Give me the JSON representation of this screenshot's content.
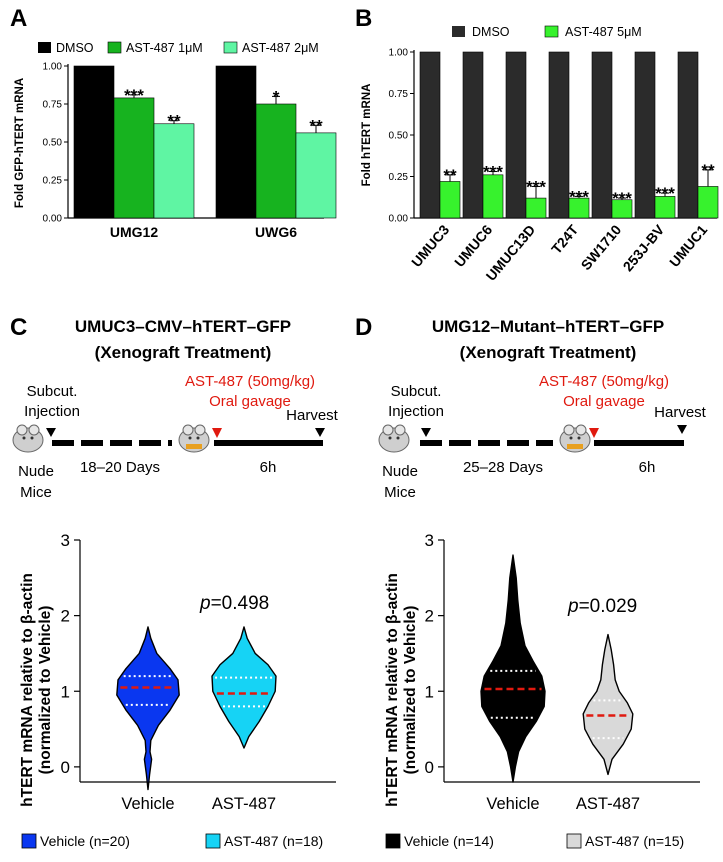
{
  "panels": {
    "A": {
      "letter": "A",
      "legend": [
        "DMSO",
        "AST-487 1μM",
        "AST-487 2μM"
      ],
      "ylabel": "Fold GFP-hTERT mRNA",
      "yticks": [
        "0.00",
        "0.25",
        "0.50",
        "0.75",
        "1.00"
      ],
      "colors": [
        "#000000",
        "#17b31f",
        "#5ff5a3"
      ]
    },
    "B": {
      "letter": "B",
      "legend": [
        "DMSO",
        "AST-487 5μM"
      ],
      "ylabel": "Fold hTERT mRNA",
      "yticks": [
        "0.00",
        "0.25",
        "0.50",
        "0.75",
        "1.00"
      ],
      "colors": [
        "#2b2b2b",
        "#37f22d"
      ]
    },
    "C": {
      "letter": "C",
      "title1": "UMUC3–CMV–hTERT–GFP",
      "title2": "(Xenograft Treatment)",
      "treatment1": "AST-487 (50mg/kg)",
      "treatment2": "Oral gavage",
      "subcut1": "Subcut.",
      "subcut2": "Injection",
      "nude1": "Nude",
      "nude2": "Mice",
      "days": "18–20 Days",
      "hours": "6h",
      "harvest": "Harvest",
      "ylabel1": "hTERT mRNA relative to β-actin",
      "ylabel2": "(normalized to Vehicle)",
      "yticks": [
        "0",
        "1",
        "2",
        "3"
      ],
      "p_label": "p",
      "p_value": "=0.498",
      "categories": [
        "Vehicle",
        "AST-487"
      ],
      "legend": [
        "Vehicle (n=20)",
        "AST-487 (n=18)"
      ],
      "colors": [
        "#0a37f0",
        "#16d3f5"
      ]
    },
    "D": {
      "letter": "D",
      "title1": "UMG12–Mutant–hTERT–GFP",
      "title2": "(Xenograft Treatment)",
      "treatment1": "AST-487 (50mg/kg)",
      "treatment2": "Oral gavage",
      "subcut1": "Subcut.",
      "subcut2": "Injection",
      "nude1": "Nude",
      "nude2": "Mice",
      "days": "25–28 Days",
      "hours": "6h",
      "harvest": "Harvest",
      "ylabel1": "hTERT mRNA relative to β-actin",
      "ylabel2": "(normalized to Vehicle)",
      "yticks": [
        "0",
        "1",
        "2",
        "3"
      ],
      "p_label": "p",
      "p_value": "=0.029",
      "categories": [
        "Vehicle",
        "AST-487"
      ],
      "legend": [
        "Vehicle (n=14)",
        "AST-487 (n=15)"
      ],
      "colors": [
        "#000000",
        "#d9d9d9"
      ]
    }
  },
  "chart_data": [
    {
      "panel": "A",
      "type": "bar",
      "title": "",
      "xlabel": "",
      "ylabel": "Fold GFP-hTERT mRNA",
      "ylim": [
        0,
        1.0
      ],
      "categories": [
        "UMG12",
        "UWG6"
      ],
      "series": [
        {
          "name": "DMSO",
          "values": [
            1.0,
            1.0
          ],
          "errors": [
            0,
            0
          ],
          "sig": [
            "",
            ""
          ]
        },
        {
          "name": "AST-487 1μM",
          "values": [
            0.79,
            0.75
          ],
          "errors": [
            0.02,
            0.05
          ],
          "sig": [
            "***",
            "*"
          ]
        },
        {
          "name": "AST-487 2μM",
          "values": [
            0.62,
            0.56
          ],
          "errors": [
            0.02,
            0.05
          ],
          "sig": [
            "**",
            "**"
          ]
        }
      ]
    },
    {
      "panel": "B",
      "type": "bar",
      "title": "",
      "xlabel": "",
      "ylabel": "Fold hTERT mRNA",
      "ylim": [
        0,
        1.0
      ],
      "categories": [
        "UMUC3",
        "UMUC6",
        "UMUC13D",
        "T24T",
        "SW1710",
        "253J-BV",
        "UMUC1"
      ],
      "series": [
        {
          "name": "DMSO",
          "values": [
            1.0,
            1.0,
            1.0,
            1.0,
            1.0,
            1.0,
            1.0
          ],
          "errors": [
            0,
            0,
            0,
            0,
            0,
            0,
            0
          ],
          "sig": [
            "",
            "",
            "",
            "",
            "",
            "",
            ""
          ]
        },
        {
          "name": "AST-487 5μM",
          "values": [
            0.22,
            0.26,
            0.12,
            0.12,
            0.11,
            0.13,
            0.19
          ],
          "errors": [
            0.04,
            0.02,
            0.07,
            0.01,
            0.01,
            0.02,
            0.1
          ],
          "sig": [
            "**",
            "***",
            "***",
            "***",
            "***",
            "***",
            "**"
          ]
        }
      ]
    },
    {
      "panel": "C",
      "type": "violin",
      "title": "UMUC3–CMV–hTERT–GFP",
      "xlabel": "",
      "ylabel": "hTERT mRNA relative to β-actin (normalized to Vehicle)",
      "ylim": [
        -0.2,
        3.0
      ],
      "categories": [
        "Vehicle",
        "AST-487"
      ],
      "series": [
        {
          "name": "Vehicle (n=20)",
          "min": -0.3,
          "max": 1.85,
          "q1": 0.82,
          "median": 1.05,
          "q3": 1.2,
          "profile": [
            [
              -0.3,
              0
            ],
            [
              -0.1,
              0.04
            ],
            [
              0.1,
              0.09
            ],
            [
              0.2,
              0.05
            ],
            [
              0.35,
              0.07
            ],
            [
              0.55,
              0.26
            ],
            [
              0.75,
              0.55
            ],
            [
              0.95,
              0.78
            ],
            [
              1.15,
              0.75
            ],
            [
              1.3,
              0.55
            ],
            [
              1.5,
              0.22
            ],
            [
              1.7,
              0.07
            ],
            [
              1.85,
              0
            ]
          ]
        },
        {
          "name": "AST-487 (n=18)",
          "min": 0.25,
          "max": 1.85,
          "q1": 0.8,
          "median": 0.97,
          "q3": 1.18,
          "profile": [
            [
              0.25,
              0
            ],
            [
              0.4,
              0.12
            ],
            [
              0.6,
              0.38
            ],
            [
              0.8,
              0.6
            ],
            [
              1.0,
              0.78
            ],
            [
              1.2,
              0.8
            ],
            [
              1.35,
              0.6
            ],
            [
              1.5,
              0.28
            ],
            [
              1.7,
              0.08
            ],
            [
              1.85,
              0
            ]
          ]
        }
      ],
      "p_value": 0.498
    },
    {
      "panel": "D",
      "type": "violin",
      "title": "UMG12–Mutant–hTERT–GFP",
      "xlabel": "",
      "ylabel": "hTERT mRNA relative to β-actin (normalized to Vehicle)",
      "ylim": [
        -0.2,
        3.0
      ],
      "categories": [
        "Vehicle",
        "AST-487"
      ],
      "series": [
        {
          "name": "Vehicle (n=14)",
          "min": -0.2,
          "max": 2.8,
          "q1": 0.65,
          "median": 1.03,
          "q3": 1.27,
          "profile": [
            [
              -0.2,
              0
            ],
            [
              0.0,
              0.06
            ],
            [
              0.2,
              0.14
            ],
            [
              0.4,
              0.32
            ],
            [
              0.6,
              0.58
            ],
            [
              0.8,
              0.78
            ],
            [
              1.0,
              0.8
            ],
            [
              1.2,
              0.72
            ],
            [
              1.4,
              0.5
            ],
            [
              1.6,
              0.3
            ],
            [
              1.9,
              0.18
            ],
            [
              2.2,
              0.12
            ],
            [
              2.5,
              0.08
            ],
            [
              2.8,
              0
            ]
          ]
        },
        {
          "name": "AST-487 (n=15)",
          "min": -0.1,
          "max": 1.75,
          "q1": 0.38,
          "median": 0.68,
          "q3": 0.88,
          "profile": [
            [
              -0.1,
              0
            ],
            [
              0.1,
              0.1
            ],
            [
              0.3,
              0.38
            ],
            [
              0.5,
              0.58
            ],
            [
              0.7,
              0.62
            ],
            [
              0.85,
              0.48
            ],
            [
              1.0,
              0.28
            ],
            [
              1.15,
              0.18
            ],
            [
              1.35,
              0.14
            ],
            [
              1.55,
              0.08
            ],
            [
              1.75,
              0
            ]
          ]
        }
      ],
      "p_value": 0.029
    }
  ]
}
